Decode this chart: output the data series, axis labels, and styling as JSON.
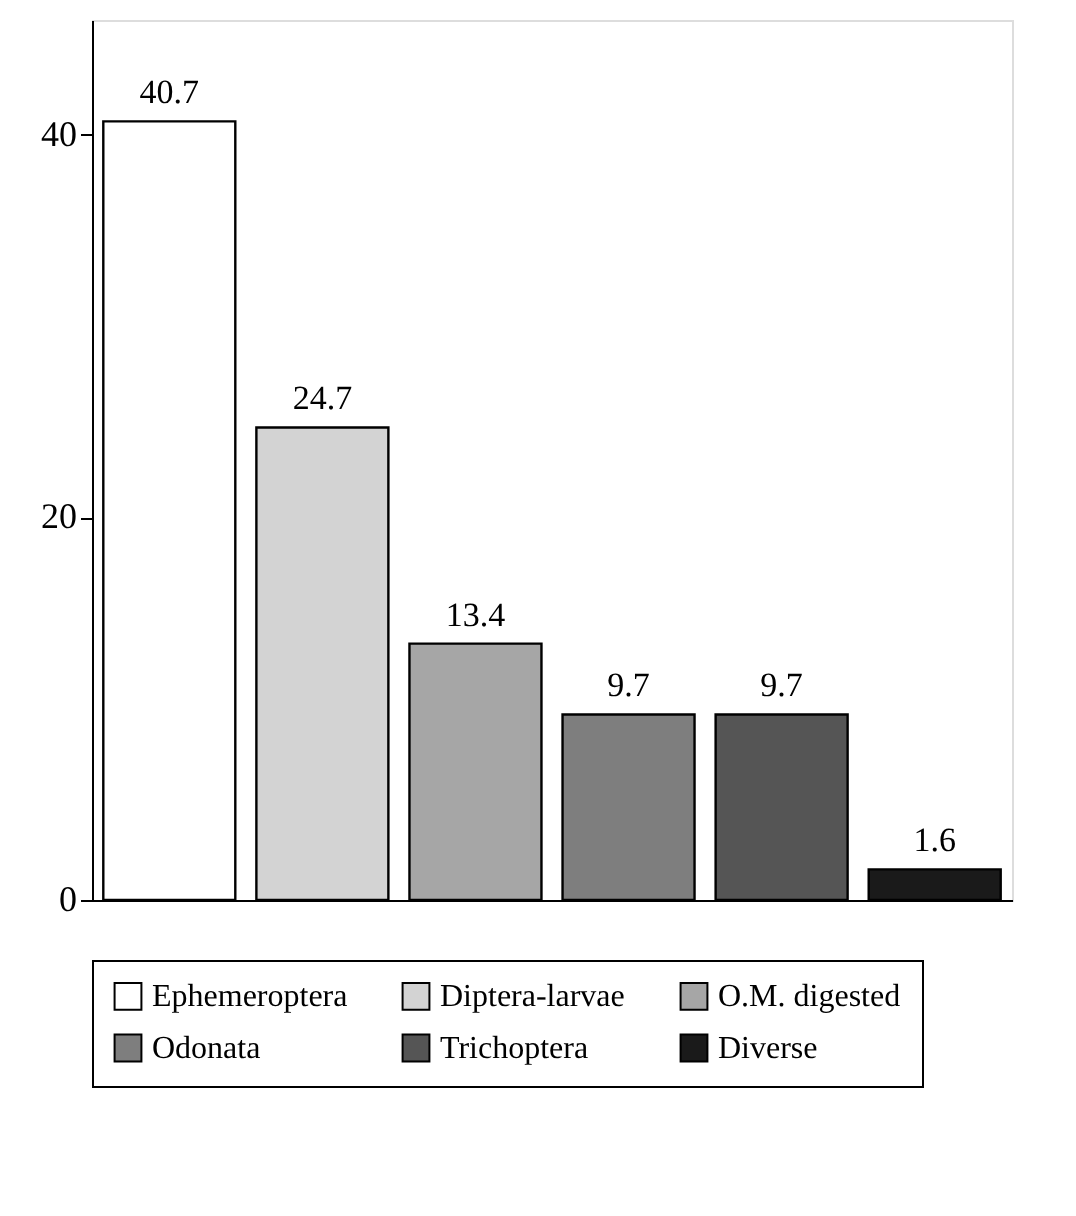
{
  "chart_data": {
    "type": "bar",
    "categories": [
      null,
      null,
      null,
      null,
      null,
      null
    ],
    "series": [
      {
        "name": "Ephemeroptera",
        "color": "#ffffff",
        "values": [
          40.7,
          null,
          null,
          null,
          null,
          null
        ]
      },
      {
        "name": "Diptera-larvae",
        "color": "#d3d3d3",
        "values": [
          null,
          24.7,
          null,
          null,
          null,
          null
        ]
      },
      {
        "name": "O.M. digested",
        "color": "#a6a6a6",
        "values": [
          null,
          null,
          13.4,
          null,
          null,
          null
        ]
      },
      {
        "name": "Odonata",
        "color": "#7e7e7e",
        "values": [
          null,
          null,
          null,
          9.7,
          null,
          null
        ]
      },
      {
        "name": "Trichoptera",
        "color": "#555555",
        "values": [
          null,
          null,
          null,
          null,
          9.7,
          null
        ]
      },
      {
        "name": "Diverse",
        "color": "#1a1a1a",
        "values": [
          null,
          null,
          null,
          null,
          null,
          1.6
        ]
      }
    ],
    "ylim": [
      0,
      46
    ],
    "yticks": [
      0,
      20,
      40
    ],
    "grid": false,
    "data_labels": true,
    "legend": "bottom",
    "tick_labels": "y"
  }
}
